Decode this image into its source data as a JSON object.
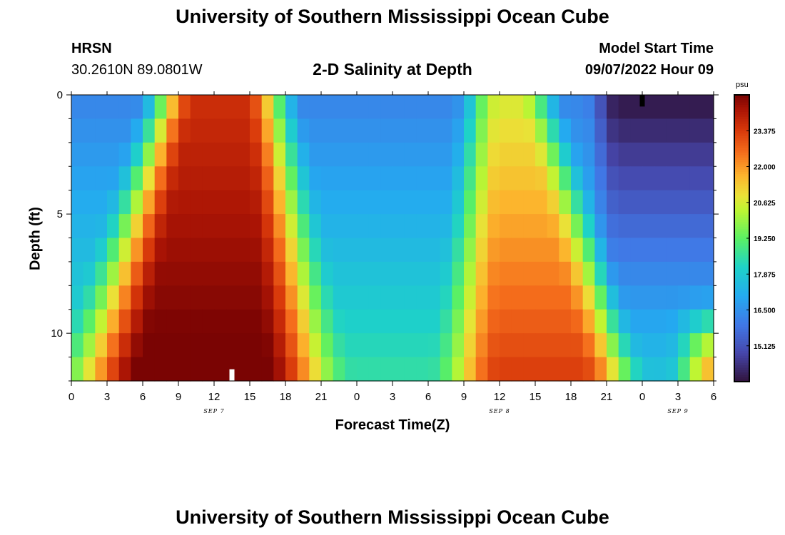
{
  "header": {
    "title": "University of Southern Mississippi Ocean Cube",
    "station": "HRSN",
    "coords": "30.2610N  89.0801W",
    "subtitle": "2-D Salinity at Depth",
    "model_label": "Model Start Time",
    "model_time": "09/07/2022 Hour 09"
  },
  "footer": {
    "title": "University of Southern Mississippi Ocean Cube"
  },
  "chart_data": {
    "type": "heatmap",
    "title": "2-D Salinity at Depth",
    "xlabel": "Forecast Time(Z)",
    "ylabel": "Depth (ft)",
    "x_unit": "hours since 09/07 00Z",
    "xlim": [
      0,
      54
    ],
    "ylim": [
      0,
      12
    ],
    "x_ticks": [
      {
        "x": 0,
        "label": "0"
      },
      {
        "x": 3,
        "label": "3"
      },
      {
        "x": 6,
        "label": "6"
      },
      {
        "x": 9,
        "label": "9"
      },
      {
        "x": 12,
        "label": "12"
      },
      {
        "x": 15,
        "label": "15"
      },
      {
        "x": 18,
        "label": "18"
      },
      {
        "x": 21,
        "label": "21"
      },
      {
        "x": 24,
        "label": "0"
      },
      {
        "x": 27,
        "label": "3"
      },
      {
        "x": 30,
        "label": "6"
      },
      {
        "x": 33,
        "label": "9"
      },
      {
        "x": 36,
        "label": "12"
      },
      {
        "x": 39,
        "label": "15"
      },
      {
        "x": 42,
        "label": "18"
      },
      {
        "x": 45,
        "label": "21"
      },
      {
        "x": 48,
        "label": "0"
      },
      {
        "x": 51,
        "label": "3"
      },
      {
        "x": 54,
        "label": "6"
      }
    ],
    "date_labels": [
      {
        "x": 12,
        "label": "SEP 7"
      },
      {
        "x": 36,
        "label": "SEP 8"
      },
      {
        "x": 51,
        "label": "SEP 9"
      }
    ],
    "y_ticks": [
      {
        "y": 0,
        "label": "0"
      },
      {
        "y": 5,
        "label": "5"
      },
      {
        "y": 10,
        "label": "10"
      }
    ],
    "depth_levels": [
      0.5,
      1.5,
      2.5,
      3.5,
      4.5,
      5.5,
      6.5,
      7.5,
      8.5,
      9.5,
      10.5,
      11.5
    ],
    "time_steps_hours": 1,
    "salinity_model": {
      "background": {
        "surface": 16.2,
        "bottom": 18.6
      },
      "front1_edges_surface": [
        8.0,
        17.0
      ],
      "front1_edges_bottom": [
        2.0,
        20.0
      ],
      "front1_peak": {
        "surface": 23.6,
        "bottom": 25.0
      },
      "front2_edges_surface": [
        34.0,
        39.5
      ],
      "front2_edges_bottom": [
        33.0,
        46.0
      ],
      "front2_peak": {
        "surface": 20.6,
        "bottom": 23.4
      },
      "fresh_trough": {
        "start_hour": 43,
        "surface_min": 13.8,
        "bottom_min": 17.8
      },
      "end_bottom_rise": {
        "start_hour": 50,
        "bottom_max": 21.8
      }
    },
    "colorbar": {
      "unit": "psu",
      "min": 13.75,
      "max": 24.75,
      "ticks": [
        15.125,
        16.5,
        17.875,
        19.25,
        20.625,
        22.0,
        23.375
      ],
      "tick_labels": [
        "15.125",
        "16.500",
        "17.875",
        "19.250",
        "20.625",
        "22.000",
        "23.375"
      ]
    },
    "markers": [
      {
        "x": 13.5,
        "y": 11.75,
        "color": "#ffffff"
      },
      {
        "x": 48,
        "y": 0.25,
        "color": "#000000"
      }
    ]
  }
}
